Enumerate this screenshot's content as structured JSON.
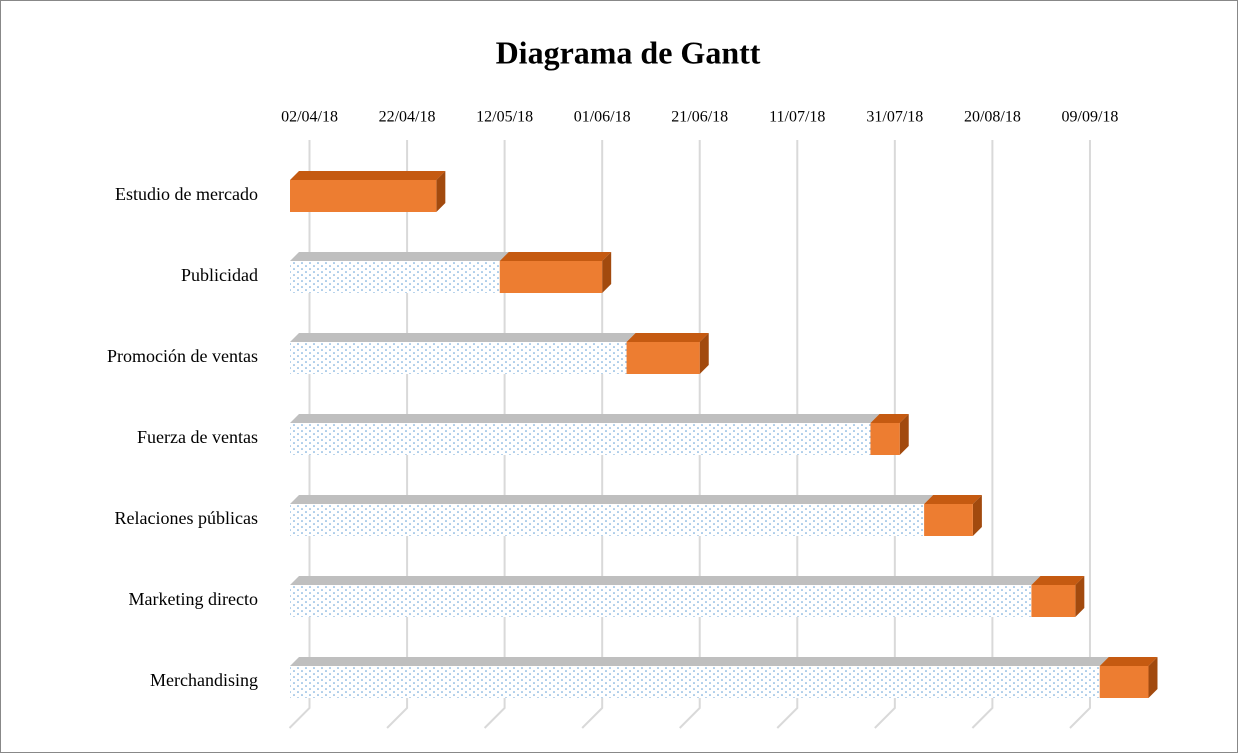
{
  "chart_data": {
    "type": "gantt",
    "title": "Diagrama de Gantt",
    "categories": [
      "Estudio de mercado",
      "Publicidad",
      "Promoción de ventas",
      "Fuerza de ventas",
      "Relaciones públicas",
      "Marketing directo",
      "Merchandising"
    ],
    "series": [
      {
        "color": "#5b9bd5",
        "values": [
          43188,
          43231,
          43257,
          43307,
          43318,
          43340,
          43354
        ]
      },
      {
        "color": "#ed7d31",
        "values": [
          30,
          21,
          15,
          6,
          10,
          9,
          10
        ]
      }
    ],
    "xlim": [
      43188,
      43368
    ],
    "xticks": [
      {
        "value": 43192,
        "label": "02/04/18"
      },
      {
        "value": 43212,
        "label": "22/04/18"
      },
      {
        "value": 43232,
        "label": "12/05/18"
      },
      {
        "value": 43252,
        "label": "01/06/18"
      },
      {
        "value": 43272,
        "label": "21/06/18"
      },
      {
        "value": 43292,
        "label": "11/07/18"
      },
      {
        "value": 43312,
        "label": "31/07/18"
      },
      {
        "value": 43332,
        "label": "20/08/18"
      },
      {
        "value": 43352,
        "label": "09/09/18"
      }
    ],
    "grid": true
  }
}
